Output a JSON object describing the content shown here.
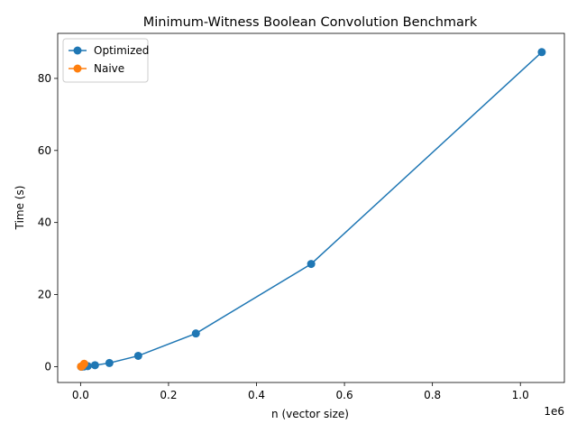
{
  "chart_data": {
    "type": "line",
    "title": "Minimum-Witness Boolean Convolution Benchmark",
    "xlabel": "n (vector size)",
    "ylabel": "Time (s)",
    "x_offset_label": "1e6",
    "xlim": [
      -52000,
      1100000
    ],
    "ylim": [
      -4.4,
      92.5
    ],
    "x_ticks": [
      0,
      200000,
      400000,
      600000,
      800000,
      1000000
    ],
    "x_tick_labels": [
      "0.0",
      "0.2",
      "0.4",
      "0.6",
      "0.8",
      "1.0"
    ],
    "y_ticks": [
      0,
      20,
      40,
      60,
      80
    ],
    "y_tick_labels": [
      "0",
      "20",
      "40",
      "60",
      "80"
    ],
    "grid": false,
    "legend_position": "top-left",
    "series": [
      {
        "name": "Optimized",
        "color": "#1f77b4",
        "x": [
          1024,
          2048,
          4096,
          8192,
          16384,
          32768,
          65536,
          131072,
          262144,
          524288,
          1048576
        ],
        "y": [
          0.01,
          0.01,
          0.02,
          0.05,
          0.15,
          0.4,
          1.0,
          3.0,
          9.2,
          28.5,
          87.3
        ]
      },
      {
        "name": "Naive",
        "color": "#ff7f0e",
        "x": [
          1024,
          2048,
          4096,
          8192
        ],
        "y": [
          0.02,
          0.06,
          0.2,
          0.8
        ]
      }
    ]
  }
}
